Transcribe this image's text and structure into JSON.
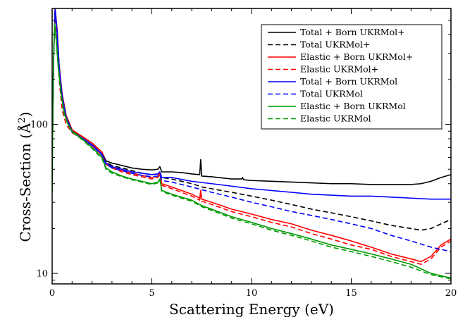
{
  "chart_data": {
    "type": "line",
    "title": "",
    "xlabel": "Scattering Energy (eV)",
    "ylabel_main": "Cross-Section (Å",
    "ylabel_sup": "2",
    "ylabel_close": ")",
    "xlim": [
      0,
      20
    ],
    "ylim": [
      8.5,
      600
    ],
    "yscale": "log",
    "x_ticks": [
      0,
      5,
      10,
      15,
      20
    ],
    "y_ticks_labeled": [
      10,
      100
    ],
    "grid": false,
    "legend_position": "top-right",
    "series": [
      {
        "name": "Total + Born UKRMol+",
        "color": "#000000",
        "dash": "solid",
        "points": [
          [
            0.02,
            80
          ],
          [
            0.08,
            300
          ],
          [
            0.15,
            600
          ],
          [
            0.25,
            430
          ],
          [
            0.35,
            250
          ],
          [
            0.5,
            160
          ],
          [
            0.7,
            115
          ],
          [
            1.0,
            92
          ],
          [
            1.5,
            83
          ],
          [
            2.0,
            75
          ],
          [
            2.5,
            65
          ],
          [
            2.7,
            57
          ],
          [
            3.0,
            55
          ],
          [
            3.5,
            53
          ],
          [
            4.0,
            51
          ],
          [
            4.5,
            50
          ],
          [
            5.0,
            49.5
          ],
          [
            5.3,
            50
          ],
          [
            5.4,
            52
          ],
          [
            5.5,
            48
          ],
          [
            6.0,
            48
          ],
          [
            6.5,
            47.5
          ],
          [
            7.0,
            46.5
          ],
          [
            7.4,
            46
          ],
          [
            7.45,
            58
          ],
          [
            7.5,
            45
          ],
          [
            8.0,
            44.5
          ],
          [
            9.0,
            43
          ],
          [
            9.5,
            43
          ],
          [
            9.55,
            44
          ],
          [
            9.6,
            42.5
          ],
          [
            10.0,
            42
          ],
          [
            11.0,
            41.5
          ],
          [
            12.0,
            41
          ],
          [
            13.0,
            40.5
          ],
          [
            14.0,
            40
          ],
          [
            15.0,
            40
          ],
          [
            16.0,
            39.5
          ],
          [
            17.0,
            39.5
          ],
          [
            18.0,
            39.5
          ],
          [
            18.5,
            40
          ],
          [
            19.0,
            41.5
          ],
          [
            19.5,
            44
          ],
          [
            20.0,
            46
          ]
        ]
      },
      {
        "name": "Total UKRMol+",
        "color": "#000000",
        "dash": "dashed",
        "points": [
          [
            0.02,
            80
          ],
          [
            0.08,
            300
          ],
          [
            0.15,
            590
          ],
          [
            0.25,
            420
          ],
          [
            0.35,
            245
          ],
          [
            0.5,
            155
          ],
          [
            0.7,
            112
          ],
          [
            1.0,
            90
          ],
          [
            1.5,
            81
          ],
          [
            2.0,
            73
          ],
          [
            2.5,
            63
          ],
          [
            2.7,
            56
          ],
          [
            3.0,
            53
          ],
          [
            3.5,
            51
          ],
          [
            4.0,
            49
          ],
          [
            4.5,
            47
          ],
          [
            5.0,
            46
          ],
          [
            5.3,
            46.5
          ],
          [
            5.4,
            48
          ],
          [
            5.5,
            44
          ],
          [
            6.0,
            43
          ],
          [
            7.0,
            40
          ],
          [
            7.4,
            38.5
          ],
          [
            7.5,
            38
          ],
          [
            8.0,
            37
          ],
          [
            9.0,
            35
          ],
          [
            9.5,
            34
          ],
          [
            10.0,
            33
          ],
          [
            11.0,
            31
          ],
          [
            12.0,
            29
          ],
          [
            13.0,
            27
          ],
          [
            14.0,
            25.5
          ],
          [
            15.0,
            24
          ],
          [
            16.0,
            22.5
          ],
          [
            17.0,
            21
          ],
          [
            18.0,
            20
          ],
          [
            18.5,
            19.5
          ],
          [
            19.0,
            20
          ],
          [
            19.5,
            21.5
          ],
          [
            20.0,
            23
          ]
        ]
      },
      {
        "name": "Elastic + Born UKRMol+",
        "color": "#ff0000",
        "dash": "solid",
        "points": [
          [
            0.02,
            80
          ],
          [
            0.08,
            300
          ],
          [
            0.15,
            600
          ],
          [
            0.25,
            430
          ],
          [
            0.35,
            250
          ],
          [
            0.5,
            160
          ],
          [
            0.7,
            115
          ],
          [
            1.0,
            92
          ],
          [
            1.5,
            83
          ],
          [
            2.0,
            75
          ],
          [
            2.5,
            65
          ],
          [
            2.7,
            55
          ],
          [
            3.0,
            52
          ],
          [
            3.5,
            49
          ],
          [
            4.0,
            47
          ],
          [
            4.5,
            45.5
          ],
          [
            5.0,
            44
          ],
          [
            5.3,
            45
          ],
          [
            5.4,
            47
          ],
          [
            5.5,
            40
          ],
          [
            6.0,
            38
          ],
          [
            7.0,
            34
          ],
          [
            7.4,
            32
          ],
          [
            7.45,
            36
          ],
          [
            7.5,
            31.5
          ],
          [
            8.0,
            30
          ],
          [
            9.0,
            27
          ],
          [
            10.0,
            25
          ],
          [
            11.0,
            23
          ],
          [
            12.0,
            21.5
          ],
          [
            13.0,
            19.5
          ],
          [
            14.0,
            18
          ],
          [
            15.0,
            16.5
          ],
          [
            16.0,
            15
          ],
          [
            17.0,
            13.5
          ],
          [
            18.0,
            12.5
          ],
          [
            18.5,
            12
          ],
          [
            19.0,
            13
          ],
          [
            19.5,
            15.5
          ],
          [
            20.0,
            17
          ]
        ]
      },
      {
        "name": "Elastic UKRMol+",
        "color": "#ff0000",
        "dash": "dashed",
        "points": [
          [
            0.02,
            80
          ],
          [
            0.08,
            300
          ],
          [
            0.15,
            560
          ],
          [
            0.25,
            360
          ],
          [
            0.35,
            200
          ],
          [
            0.5,
            125
          ],
          [
            0.7,
            100
          ],
          [
            1.0,
            88
          ],
          [
            1.5,
            80
          ],
          [
            2.0,
            72
          ],
          [
            2.5,
            62
          ],
          [
            2.7,
            54
          ],
          [
            3.0,
            51
          ],
          [
            3.5,
            48
          ],
          [
            4.0,
            46
          ],
          [
            4.5,
            44.5
          ],
          [
            5.0,
            43
          ],
          [
            5.3,
            44
          ],
          [
            5.4,
            46
          ],
          [
            5.5,
            39
          ],
          [
            6.0,
            37
          ],
          [
            7.0,
            33
          ],
          [
            7.4,
            31
          ],
          [
            7.45,
            34
          ],
          [
            7.5,
            30.5
          ],
          [
            8.0,
            29
          ],
          [
            9.0,
            26
          ],
          [
            10.0,
            24
          ],
          [
            11.0,
            22
          ],
          [
            12.0,
            20.5
          ],
          [
            13.0,
            18.5
          ],
          [
            14.0,
            17
          ],
          [
            15.0,
            15.5
          ],
          [
            16.0,
            14.5
          ],
          [
            17.0,
            13
          ],
          [
            18.0,
            12
          ],
          [
            18.5,
            11.5
          ],
          [
            19.0,
            12.5
          ],
          [
            19.5,
            15
          ],
          [
            20.0,
            16.5
          ]
        ]
      },
      {
        "name": "Total + Born UKRMol",
        "color": "#0000ff",
        "dash": "solid",
        "points": [
          [
            0.02,
            80
          ],
          [
            0.08,
            300
          ],
          [
            0.15,
            590
          ],
          [
            0.25,
            420
          ],
          [
            0.35,
            245
          ],
          [
            0.5,
            155
          ],
          [
            0.7,
            112
          ],
          [
            1.0,
            90
          ],
          [
            1.5,
            81
          ],
          [
            2.0,
            73
          ],
          [
            2.5,
            63
          ],
          [
            2.7,
            55
          ],
          [
            3.0,
            52
          ],
          [
            3.5,
            50
          ],
          [
            4.0,
            48
          ],
          [
            4.5,
            47
          ],
          [
            5.0,
            46
          ],
          [
            5.3,
            46.5
          ],
          [
            5.4,
            48
          ],
          [
            5.5,
            44
          ],
          [
            6.0,
            44
          ],
          [
            7.0,
            41.5
          ],
          [
            8.0,
            40
          ],
          [
            9.0,
            38.5
          ],
          [
            10.0,
            37
          ],
          [
            11.0,
            36
          ],
          [
            12.0,
            35
          ],
          [
            13.0,
            34
          ],
          [
            14.0,
            33.5
          ],
          [
            15.0,
            33
          ],
          [
            16.0,
            33
          ],
          [
            17.0,
            32.5
          ],
          [
            18.0,
            32
          ],
          [
            19.0,
            31.5
          ],
          [
            20.0,
            31.5
          ]
        ]
      },
      {
        "name": "Total UKRMol",
        "color": "#0000ff",
        "dash": "dashed",
        "points": [
          [
            0.02,
            80
          ],
          [
            0.08,
            300
          ],
          [
            0.15,
            580
          ],
          [
            0.25,
            410
          ],
          [
            0.35,
            240
          ],
          [
            0.5,
            152
          ],
          [
            0.7,
            110
          ],
          [
            1.0,
            89
          ],
          [
            1.5,
            80
          ],
          [
            2.0,
            72
          ],
          [
            2.5,
            62
          ],
          [
            2.7,
            54
          ],
          [
            3.0,
            51
          ],
          [
            3.5,
            49
          ],
          [
            4.0,
            47
          ],
          [
            4.5,
            45.5
          ],
          [
            5.0,
            44.5
          ],
          [
            5.3,
            45
          ],
          [
            5.4,
            46
          ],
          [
            5.5,
            42
          ],
          [
            6.0,
            41
          ],
          [
            7.0,
            38
          ],
          [
            8.0,
            35
          ],
          [
            9.0,
            32.5
          ],
          [
            10.0,
            30
          ],
          [
            11.0,
            28
          ],
          [
            12.0,
            26
          ],
          [
            13.0,
            24.5
          ],
          [
            14.0,
            23
          ],
          [
            15.0,
            21.5
          ],
          [
            16.0,
            20
          ],
          [
            17.0,
            18
          ],
          [
            18.0,
            16.5
          ],
          [
            19.0,
            15
          ],
          [
            20.0,
            14
          ]
        ]
      },
      {
        "name": "Elastic + Born UKRMol",
        "color": "#009900",
        "dash": "solid",
        "points": [
          [
            0.0,
            35
          ],
          [
            0.05,
            200
          ],
          [
            0.12,
            480
          ],
          [
            0.2,
            380
          ],
          [
            0.3,
            250
          ],
          [
            0.45,
            160
          ],
          [
            0.6,
            120
          ],
          [
            0.8,
            100
          ],
          [
            1.0,
            90
          ],
          [
            1.5,
            80
          ],
          [
            2.0,
            70
          ],
          [
            2.5,
            60
          ],
          [
            2.7,
            51
          ],
          [
            3.0,
            48
          ],
          [
            3.5,
            45
          ],
          [
            4.0,
            43
          ],
          [
            4.5,
            41.5
          ],
          [
            5.0,
            40
          ],
          [
            5.3,
            41
          ],
          [
            5.4,
            43
          ],
          [
            5.5,
            36
          ],
          [
            6.0,
            34
          ],
          [
            7.0,
            31
          ],
          [
            7.4,
            29
          ],
          [
            7.5,
            28.5
          ],
          [
            8.0,
            27
          ],
          [
            9.0,
            24
          ],
          [
            10.0,
            22
          ],
          [
            11.0,
            20
          ],
          [
            12.0,
            18.5
          ],
          [
            13.0,
            17
          ],
          [
            14.0,
            15.5
          ],
          [
            15.0,
            14.5
          ],
          [
            16.0,
            13.5
          ],
          [
            17.0,
            12.5
          ],
          [
            18.0,
            11.5
          ],
          [
            19.0,
            10
          ],
          [
            20.0,
            9.3
          ]
        ]
      },
      {
        "name": "Elastic UKRMol",
        "color": "#009900",
        "dash": "dashed",
        "points": [
          [
            0.0,
            35
          ],
          [
            0.05,
            200
          ],
          [
            0.12,
            470
          ],
          [
            0.2,
            370
          ],
          [
            0.3,
            245
          ],
          [
            0.45,
            157
          ],
          [
            0.6,
            118
          ],
          [
            0.8,
            99
          ],
          [
            1.0,
            89
          ],
          [
            1.5,
            79
          ],
          [
            2.0,
            69
          ],
          [
            2.5,
            59
          ],
          [
            2.7,
            50
          ],
          [
            3.0,
            47
          ],
          [
            3.5,
            44.5
          ],
          [
            4.0,
            42.5
          ],
          [
            4.5,
            41
          ],
          [
            5.0,
            39.5
          ],
          [
            5.3,
            40.5
          ],
          [
            5.4,
            42.5
          ],
          [
            5.5,
            35.5
          ],
          [
            6.0,
            33.5
          ],
          [
            7.0,
            30.5
          ],
          [
            7.4,
            28.5
          ],
          [
            7.5,
            28
          ],
          [
            8.0,
            26.5
          ],
          [
            9.0,
            23.5
          ],
          [
            10.0,
            21.5
          ],
          [
            11.0,
            19.5
          ],
          [
            12.0,
            18
          ],
          [
            13.0,
            16.5
          ],
          [
            14.0,
            15
          ],
          [
            15.0,
            14
          ],
          [
            16.0,
            13
          ],
          [
            17.0,
            12
          ],
          [
            18.0,
            11
          ],
          [
            19.0,
            9.8
          ],
          [
            20.0,
            9.2
          ]
        ]
      }
    ]
  }
}
